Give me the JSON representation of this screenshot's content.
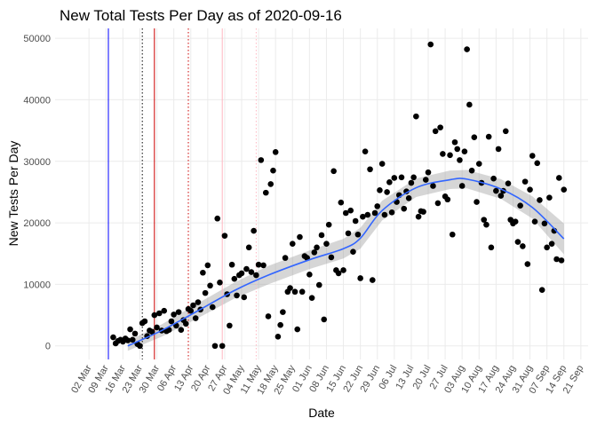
{
  "chart_data": {
    "type": "scatter",
    "title": "New Total Tests Per Day as of 2020-09-16",
    "x_label": "Date",
    "y_label": "New Tests Per Day",
    "color": "#000000",
    "grid": true,
    "xlim": [
      "02-17",
      "09-24"
    ],
    "ylim": [
      -2200,
      51600
    ],
    "yticks": [
      0,
      10000,
      20000,
      30000,
      40000,
      50000
    ],
    "xticks": [
      {
        "value": "03-02",
        "label": "02 Mar"
      },
      {
        "value": "03-09",
        "label": "09 Mar"
      },
      {
        "value": "03-16",
        "label": "16 Mar"
      },
      {
        "value": "03-23",
        "label": "23 Mar"
      },
      {
        "value": "03-30",
        "label": "30 Mar"
      },
      {
        "value": "04-06",
        "label": "06 Apr"
      },
      {
        "value": "04-13",
        "label": "13 Apr"
      },
      {
        "value": "04-20",
        "label": "20 Apr"
      },
      {
        "value": "04-27",
        "label": "27 Apr"
      },
      {
        "value": "05-04",
        "label": "04 May"
      },
      {
        "value": "05-11",
        "label": "11 May"
      },
      {
        "value": "05-18",
        "label": "18 May"
      },
      {
        "value": "05-25",
        "label": "25 May"
      },
      {
        "value": "06-01",
        "label": "01 Jun"
      },
      {
        "value": "06-08",
        "label": "08 Jun"
      },
      {
        "value": "06-15",
        "label": "15 Jun"
      },
      {
        "value": "06-22",
        "label": "22 Jun"
      },
      {
        "value": "06-29",
        "label": "29 Jun"
      },
      {
        "value": "07-06",
        "label": "06 Jul"
      },
      {
        "value": "07-13",
        "label": "13 Jul"
      },
      {
        "value": "07-20",
        "label": "20 Jul"
      },
      {
        "value": "07-27",
        "label": "27 Jul"
      },
      {
        "value": "08-03",
        "label": "03 Aug"
      },
      {
        "value": "08-10",
        "label": "10 Aug"
      },
      {
        "value": "08-17",
        "label": "17 Aug"
      },
      {
        "value": "08-24",
        "label": "24 Aug"
      },
      {
        "value": "08-31",
        "label": "31 Aug"
      },
      {
        "value": "09-07",
        "label": "07 Sep"
      },
      {
        "value": "09-14",
        "label": "14 Sep"
      },
      {
        "value": "09-21",
        "label": "21 Sep"
      }
    ],
    "vlines": [
      {
        "x": "03-10",
        "color": "#0000ff",
        "dotted": false
      },
      {
        "x": "03-24",
        "color": "#000000",
        "dotted": true
      },
      {
        "x": "03-29",
        "color": "#cc0000",
        "dotted": false
      },
      {
        "x": "04-12",
        "color": "#cc0000",
        "dotted": true
      },
      {
        "x": "04-26",
        "color": "#ffb6c1",
        "dotted": false
      },
      {
        "x": "05-10",
        "color": "#ffb6c1",
        "dotted": true
      }
    ],
    "x": [
      "03-12",
      "03-13",
      "03-14",
      "03-15",
      "03-16",
      "03-17",
      "03-18",
      "03-19",
      "03-20",
      "03-21",
      "03-22",
      "03-23",
      "03-24",
      "03-25",
      "03-26",
      "03-27",
      "03-28",
      "03-29",
      "03-30",
      "03-31",
      "04-01",
      "04-02",
      "04-03",
      "04-04",
      "04-05",
      "04-06",
      "04-07",
      "04-08",
      "04-09",
      "04-10",
      "04-11",
      "04-12",
      "04-13",
      "04-14",
      "04-15",
      "04-16",
      "04-17",
      "04-18",
      "04-19",
      "04-20",
      "04-21",
      "04-22",
      "04-23",
      "04-24",
      "04-25",
      "04-26",
      "04-27",
      "04-28",
      "04-29",
      "04-30",
      "05-01",
      "05-02",
      "05-03",
      "05-04",
      "05-05",
      "05-06",
      "05-07",
      "05-08",
      "05-09",
      "05-10",
      "05-11",
      "05-12",
      "05-13",
      "05-14",
      "05-15",
      "05-16",
      "05-17",
      "05-18",
      "05-19",
      "05-20",
      "05-21",
      "05-22",
      "05-23",
      "05-24",
      "05-25",
      "05-26",
      "05-27",
      "05-28",
      "05-29",
      "05-30",
      "05-31",
      "06-01",
      "06-02",
      "06-03",
      "06-04",
      "06-05",
      "06-06",
      "06-07",
      "06-08",
      "06-09",
      "06-10",
      "06-11",
      "06-12",
      "06-13",
      "06-14",
      "06-15",
      "06-16",
      "06-17",
      "06-18",
      "06-19",
      "06-20",
      "06-21",
      "06-22",
      "06-23",
      "06-24",
      "06-25",
      "06-26",
      "06-27",
      "06-28",
      "06-29",
      "06-30",
      "07-01",
      "07-02",
      "07-03",
      "07-04",
      "07-05",
      "07-06",
      "07-07",
      "07-08",
      "07-09",
      "07-10",
      "07-11",
      "07-12",
      "07-13",
      "07-14",
      "07-15",
      "07-16",
      "07-17",
      "07-18",
      "07-19",
      "07-20",
      "07-21",
      "07-22",
      "07-23",
      "07-24",
      "07-25",
      "07-26",
      "07-27",
      "07-28",
      "07-29",
      "07-30",
      "07-31",
      "08-01",
      "08-02",
      "08-03",
      "08-04",
      "08-05",
      "08-06",
      "08-07",
      "08-08",
      "08-09",
      "08-10",
      "08-11",
      "08-12",
      "08-13",
      "08-14",
      "08-15",
      "08-16",
      "08-17",
      "08-18",
      "08-19",
      "08-20",
      "08-21",
      "08-22",
      "08-23",
      "08-24",
      "08-25",
      "08-26",
      "08-27",
      "08-28",
      "08-29",
      "08-30",
      "08-31",
      "09-01",
      "09-02",
      "09-03",
      "09-04",
      "09-05",
      "09-06",
      "09-07",
      "09-08",
      "09-09",
      "09-10",
      "09-11",
      "09-12",
      "09-13",
      "09-14"
    ],
    "values": [
      1400,
      400,
      800,
      1000,
      700,
      1200,
      900,
      2700,
      1000,
      2000,
      300,
      0,
      3700,
      4000,
      1600,
      2500,
      2300,
      5000,
      3000,
      5300,
      2500,
      5700,
      2400,
      2600,
      4000,
      5100,
      3300,
      5500,
      2600,
      4200,
      3600,
      6000,
      5700,
      6600,
      4500,
      7100,
      5900,
      11900,
      8600,
      13100,
      9800,
      6300,
      0,
      20700,
      10300,
      0,
      17900,
      8400,
      3300,
      13200,
      10900,
      8200,
      11500,
      11800,
      7900,
      12500,
      16000,
      12000,
      18700,
      11500,
      13200,
      30200,
      13100,
      24900,
      4800,
      26300,
      28500,
      31500,
      1500,
      3400,
      5500,
      14300,
      8800,
      9400,
      16600,
      8800,
      2700,
      17700,
      8800,
      14600,
      14300,
      11600,
      7800,
      15200,
      16000,
      9900,
      18000,
      4300,
      16600,
      19700,
      14400,
      28400,
      12300,
      11800,
      23300,
      12300,
      21600,
      18300,
      22000,
      15300,
      20300,
      18100,
      11000,
      21000,
      31600,
      21300,
      28700,
      10700,
      21600,
      22700,
      25300,
      29600,
      21300,
      25000,
      26600,
      21700,
      27300,
      23400,
      24500,
      27400,
      22300,
      25100,
      24000,
      26500,
      27400,
      37300,
      21000,
      21900,
      21800,
      27000,
      28200,
      49000,
      26000,
      34900,
      23200,
      35500,
      31200,
      24300,
      23800,
      31000,
      18100,
      33100,
      32000,
      30200,
      26000,
      31600,
      48200,
      39200,
      28500,
      33900,
      23400,
      29600,
      26500,
      20500,
      19700,
      34000,
      16000,
      27200,
      25200,
      32000,
      24400,
      25200,
      34900,
      26400,
      20500,
      19900,
      20200,
      16900,
      22800,
      16200,
      26700,
      13300,
      25400,
      30900,
      20200,
      29700,
      23700,
      9100,
      19900,
      16000,
      24100,
      16600,
      18700,
      14100,
      27300,
      13900,
      25400
    ],
    "smooth": {
      "color": "#3366ff",
      "band_color": "#999999",
      "x": [
        "03-18",
        "04-01",
        "04-15",
        "05-01",
        "05-15",
        "06-01",
        "06-15",
        "06-22",
        "07-01",
        "07-15",
        "07-29",
        "08-05",
        "08-19",
        "09-01",
        "09-14"
      ],
      "values": [
        0,
        2500,
        5500,
        9000,
        11500,
        14000,
        15800,
        17500,
        22000,
        25700,
        27000,
        27100,
        25500,
        22500,
        17400
      ],
      "lower": [
        -800,
        1500,
        4300,
        7700,
        10000,
        12500,
        14200,
        15800,
        20400,
        24200,
        25500,
        25600,
        23900,
        20700,
        14900
      ],
      "upper": [
        800,
        3500,
        6700,
        10300,
        13000,
        15500,
        17400,
        19200,
        23600,
        27200,
        28500,
        28600,
        27100,
        24300,
        19900
      ]
    }
  }
}
